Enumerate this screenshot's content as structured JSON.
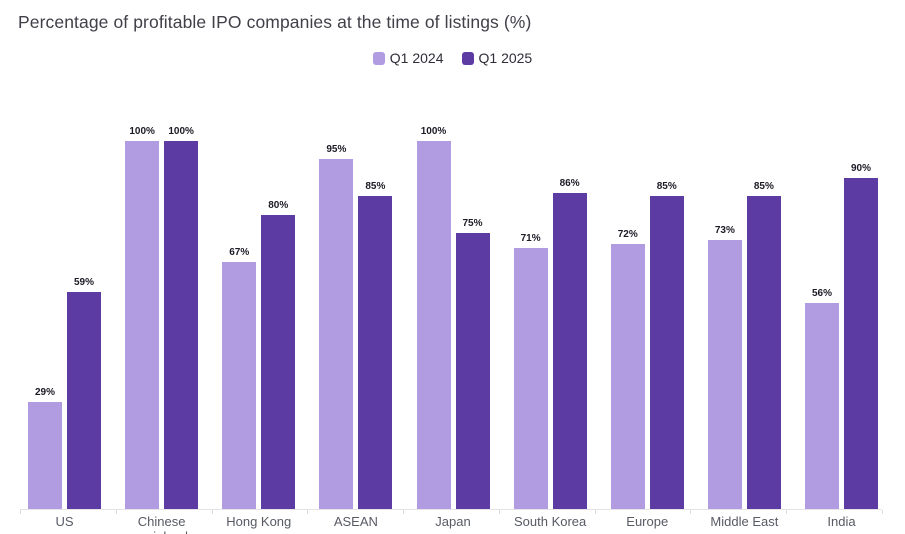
{
  "title": "Percentage of profitable IPO companies at the time of listings (%)",
  "colors": {
    "series_light": "#b19ce2",
    "series_dark": "#5c3ca3",
    "title_text": "#404049",
    "value_label_text": "#1b1b25",
    "category_text": "#585a64",
    "axis_line": "#e4e4e8",
    "background": "#ffffff"
  },
  "chart_data": {
    "type": "bar",
    "title": "Percentage of profitable IPO companies at the time of listings (%)",
    "categories": [
      "US",
      "Chinese mainland",
      "Hong Kong",
      "ASEAN",
      "Japan",
      "South Korea",
      "Europe",
      "Middle East",
      "India"
    ],
    "series": [
      {
        "name": "Q1 2024",
        "color": "#b19ce2",
        "values": [
          29,
          100,
          67,
          95,
          100,
          71,
          72,
          73,
          56
        ]
      },
      {
        "name": "Q1 2025",
        "color": "#5c3ca3",
        "values": [
          59,
          100,
          80,
          85,
          75,
          86,
          85,
          85,
          90
        ]
      }
    ],
    "value_suffix": "%",
    "xlabel": "",
    "ylabel": "",
    "ylim": [
      0,
      100
    ],
    "grid": false,
    "y_axis_visible": false,
    "data_labels": true,
    "legend_position": "top-center"
  }
}
